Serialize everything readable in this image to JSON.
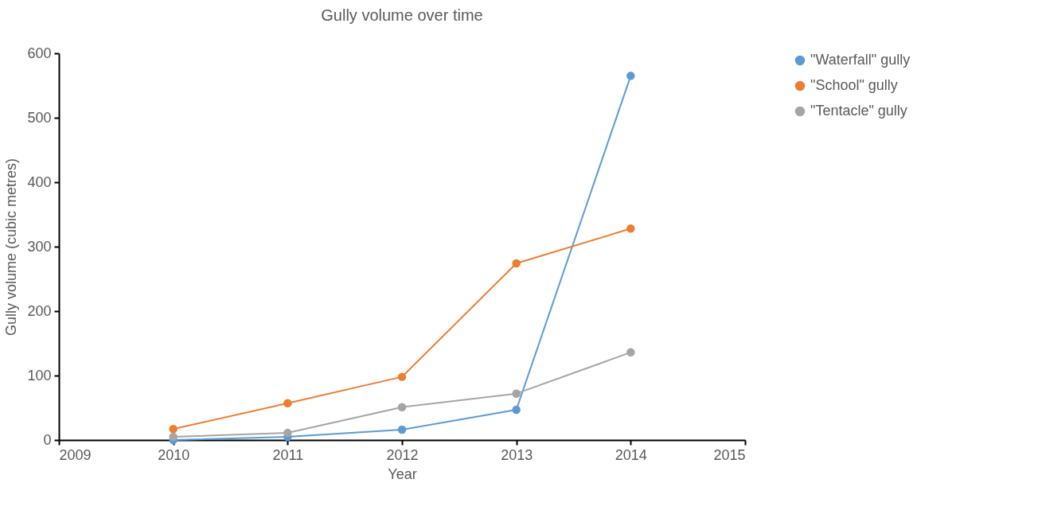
{
  "chart_data": {
    "type": "line",
    "title": "Gully volume over time",
    "xlabel": "Year",
    "ylabel": "Gully volume (cubic metres)",
    "x": [
      2010,
      2011,
      2012,
      2013,
      2014
    ],
    "series": [
      {
        "name": "\"Waterfall\" gully",
        "color": "#5b9bd5",
        "values": [
          0,
          5,
          16,
          47,
          565
        ]
      },
      {
        "name": "\"School\" gully",
        "color": "#ed7d31",
        "values": [
          17,
          57,
          98,
          274,
          328
        ]
      },
      {
        "name": "\"Tentacle\" gully",
        "color": "#a5a5a5",
        "values": [
          5,
          11,
          51,
          72,
          136
        ]
      }
    ],
    "xlim": [
      2009,
      2015
    ],
    "xticks": [
      2009,
      2010,
      2011,
      2012,
      2013,
      2014,
      2015
    ],
    "ylim": [
      0,
      600
    ],
    "yticks": [
      0,
      100,
      200,
      300,
      400,
      500,
      600
    ],
    "grid": false,
    "legend": "right",
    "marker": "circle",
    "line_style": "solid"
  }
}
